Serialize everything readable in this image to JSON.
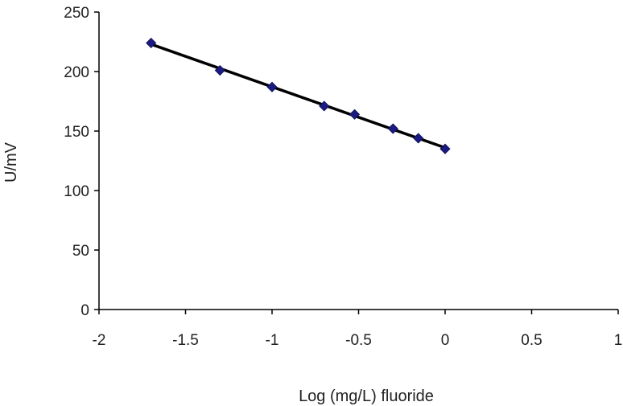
{
  "chart_data": {
    "type": "scatter",
    "title": "",
    "xlabel": "Log (mg/L) fluoride",
    "ylabel": "U/mV",
    "xlim": [
      -2,
      1
    ],
    "ylim": [
      0,
      250
    ],
    "xticks": [
      "-2",
      "-1.5",
      "-1",
      "-0.5",
      "0",
      "0.5",
      "1"
    ],
    "yticks": [
      "0",
      "50",
      "100",
      "150",
      "200",
      "250"
    ],
    "grid": false,
    "legend": "none",
    "marker": "diamond",
    "marker_color": "#1a1a80",
    "line_color": "#000000",
    "series": [
      {
        "x": [
          -1.699,
          -1.301,
          -1.0,
          -0.699,
          -0.523,
          -0.301,
          -0.155,
          0.0
        ],
        "y": [
          224,
          201,
          187,
          171,
          164,
          152,
          144,
          135
        ]
      }
    ],
    "trendline": {
      "x": [
        -1.7,
        0.0
      ],
      "y": [
        223,
        136
      ]
    }
  }
}
